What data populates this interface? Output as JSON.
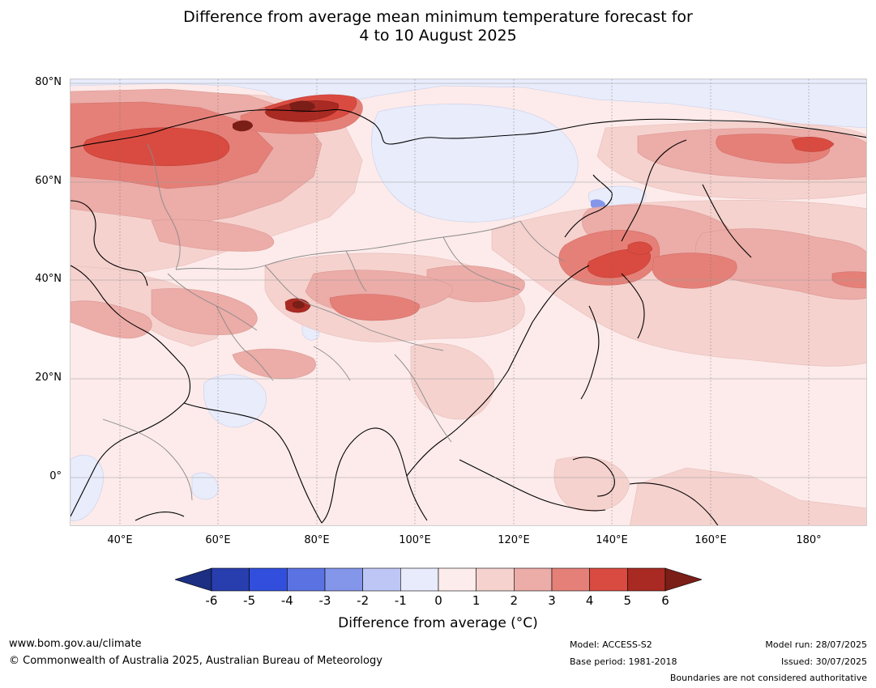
{
  "title_line1": "Difference from average mean minimum temperature forecast for",
  "title_line2": "4 to 10 August 2025",
  "lat_labels": [
    "80°N",
    "60°N",
    "40°N",
    "20°N",
    "0°"
  ],
  "lon_labels": [
    "40°E",
    "60°E",
    "80°E",
    "100°E",
    "120°E",
    "140°E",
    "160°E",
    "180°"
  ],
  "map_extent": {
    "lon_range": [
      30,
      192
    ],
    "lat_range": [
      -10,
      81
    ]
  },
  "colorbar": {
    "ticks": [
      "-6",
      "-5",
      "-4",
      "-3",
      "-2",
      "-1",
      "0",
      "1",
      "2",
      "3",
      "4",
      "5",
      "6"
    ],
    "colors": [
      "#1c2f82",
      "#283eae",
      "#314fdc",
      "#5b73e2",
      "#8496ea",
      "#bdc6f4",
      "#e7ebfb",
      "#fceceb",
      "#f5d2ce",
      "#ecaca7",
      "#e58078",
      "#d94b40",
      "#a92a22",
      "#7a1e17"
    ],
    "label": "Difference from average (°C)"
  },
  "footer": {
    "website": "www.bom.gov.au/climate",
    "copyright": "© Commonwealth of Australia 2025, Australian Bureau of Meteorology",
    "model": "Model: ACCESS-S2",
    "base_period": "Base period: 1981-2018",
    "model_run": "Model run: 28/07/2025",
    "issued": "Issued: 30/07/2025",
    "disclaimer": "Boundaries are not considered authoritative"
  }
}
